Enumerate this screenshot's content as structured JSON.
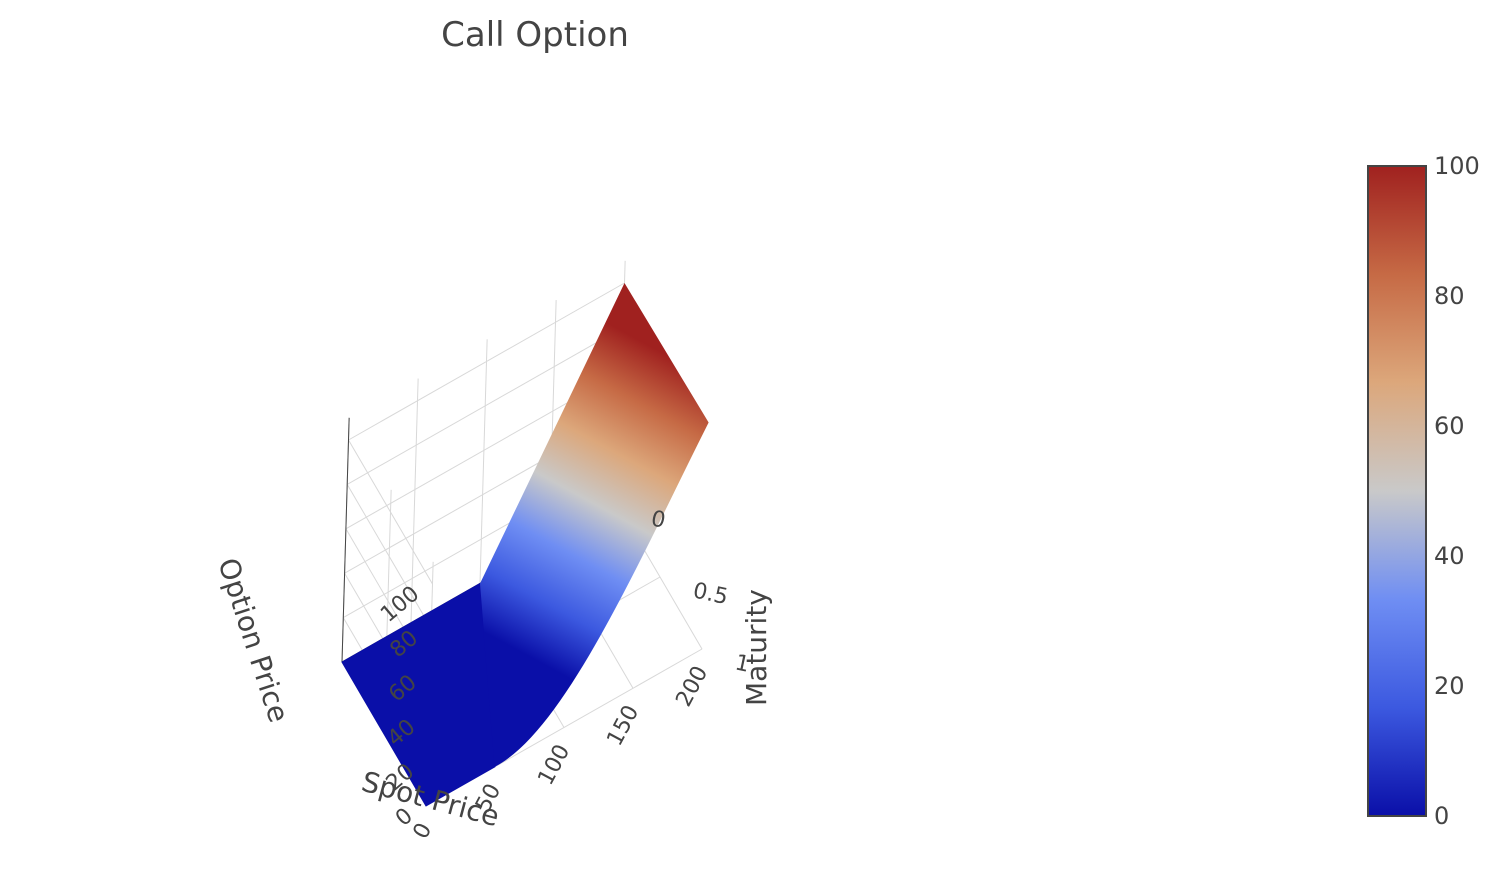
{
  "chart_data": {
    "type": "surface",
    "title": "Call Option",
    "x_axis": {
      "title": "Spot Price",
      "ticks": [
        "0",
        "50",
        "100",
        "150",
        "200"
      ],
      "range": [
        0,
        200
      ]
    },
    "y_axis": {
      "title": "Maturity",
      "ticks": [
        "0",
        "0.5",
        "1"
      ],
      "range": [
        0,
        1
      ]
    },
    "z_axis": {
      "title": "Option Price",
      "ticks": [
        "0",
        "20",
        "40",
        "60",
        "80",
        "100"
      ],
      "range": [
        0,
        100
      ]
    },
    "strike": 100,
    "surface_samples": [
      {
        "spot": 0,
        "maturity": 0,
        "price": 0
      },
      {
        "spot": 100,
        "maturity": 0,
        "price": 0
      },
      {
        "spot": 150,
        "maturity": 0,
        "price": 50
      },
      {
        "spot": 200,
        "maturity": 0,
        "price": 100
      },
      {
        "spot": 0,
        "maturity": 1,
        "price": 0
      },
      {
        "spot": 50,
        "maturity": 1,
        "price": 0
      },
      {
        "spot": 100,
        "maturity": 1,
        "price": 10
      },
      {
        "spot": 150,
        "maturity": 1,
        "price": 55
      },
      {
        "spot": 200,
        "maturity": 1,
        "price": 102
      }
    ],
    "colorscale": [
      "#0a0fa8",
      "#3c59e0",
      "#6f8ef3",
      "#c9c9c9",
      "#dca77b",
      "#c66a45",
      "#a0211f"
    ],
    "colorbar": {
      "range": [
        0,
        100
      ],
      "ticks": [
        "0",
        "20",
        "40",
        "60",
        "80",
        "100"
      ]
    },
    "grid": true,
    "legend": "colorbar-right"
  }
}
